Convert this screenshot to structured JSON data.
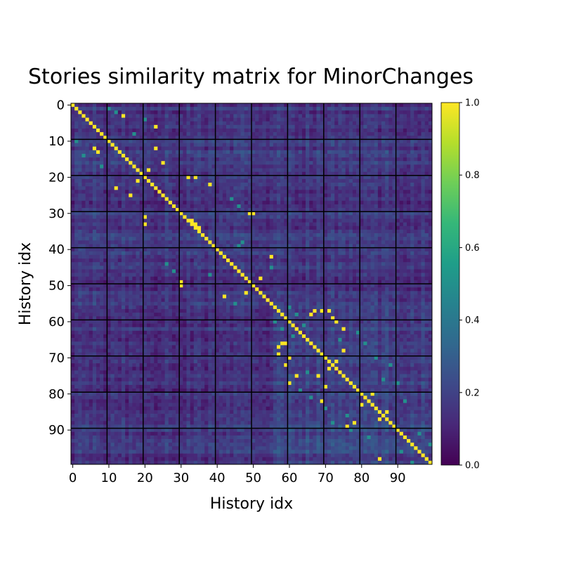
{
  "chart_data": {
    "type": "heatmap",
    "title": "Stories similarity matrix for MinorChanges",
    "xlabel": "History idx",
    "ylabel": "History idx",
    "size": 100,
    "x_ticks": [
      0,
      10,
      20,
      30,
      40,
      50,
      60,
      70,
      80,
      90
    ],
    "y_ticks": [
      0,
      10,
      20,
      30,
      40,
      50,
      60,
      70,
      80,
      90
    ],
    "gridlines_at": [
      9.5,
      19.5,
      29.5,
      39.5,
      49.5,
      59.5,
      69.5,
      79.5,
      89.5
    ],
    "value_range": [
      0.0,
      1.0
    ],
    "colormap": "viridis",
    "colormap_stops": [
      "#440154",
      "#482878",
      "#3e4989",
      "#31688e",
      "#26828e",
      "#1f9e89",
      "#35b779",
      "#6ece58",
      "#b5de2b",
      "#fde725"
    ],
    "colorbar_ticks": [
      "0.0",
      "0.2",
      "0.4",
      "0.6",
      "0.8",
      "1.0"
    ],
    "diagonal_value": 1.0,
    "high_similarity_pairs": [
      [
        3,
        14
      ],
      [
        6,
        23
      ],
      [
        12,
        6
      ],
      [
        12,
        23
      ],
      [
        13,
        7
      ],
      [
        16,
        25
      ],
      [
        18,
        21
      ],
      [
        21,
        18
      ],
      [
        23,
        12
      ],
      [
        25,
        16
      ],
      [
        20,
        32
      ],
      [
        20,
        34
      ],
      [
        22,
        38
      ],
      [
        30,
        49
      ],
      [
        30,
        50
      ],
      [
        31,
        20
      ],
      [
        33,
        20
      ],
      [
        32,
        33
      ],
      [
        33,
        34
      ],
      [
        34,
        35
      ],
      [
        42,
        55
      ],
      [
        48,
        52
      ],
      [
        49,
        30
      ],
      [
        50,
        30
      ],
      [
        52,
        48
      ],
      [
        53,
        42
      ],
      [
        57,
        67
      ],
      [
        57,
        69
      ],
      [
        57,
        71
      ],
      [
        58,
        66
      ],
      [
        59,
        72
      ],
      [
        60,
        73
      ],
      [
        62,
        75
      ],
      [
        66,
        58
      ],
      [
        66,
        59
      ],
      [
        67,
        57
      ],
      [
        68,
        75
      ],
      [
        69,
        57
      ],
      [
        70,
        60
      ],
      [
        71,
        73
      ],
      [
        72,
        59
      ],
      [
        73,
        71
      ],
      [
        75,
        62
      ],
      [
        75,
        68
      ],
      [
        77,
        60
      ],
      [
        78,
        70
      ],
      [
        80,
        83
      ],
      [
        82,
        69
      ],
      [
        83,
        80
      ],
      [
        85,
        87
      ],
      [
        87,
        85
      ],
      [
        88,
        78
      ],
      [
        89,
        76
      ],
      [
        98,
        85
      ]
    ],
    "medium_similarity_pairs": [
      [
        1,
        10
      ],
      [
        2,
        12
      ],
      [
        4,
        20
      ],
      [
        8,
        17
      ],
      [
        10,
        1
      ],
      [
        14,
        3
      ],
      [
        17,
        8
      ],
      [
        26,
        44
      ],
      [
        28,
        46
      ],
      [
        38,
        47
      ],
      [
        39,
        46
      ],
      [
        44,
        26
      ],
      [
        45,
        55
      ],
      [
        46,
        28
      ],
      [
        47,
        38
      ],
      [
        55,
        45
      ],
      [
        56,
        60
      ],
      [
        58,
        62
      ],
      [
        60,
        56
      ],
      [
        61,
        64
      ],
      [
        62,
        58
      ],
      [
        63,
        79
      ],
      [
        64,
        61
      ],
      [
        65,
        74
      ],
      [
        66,
        81
      ],
      [
        70,
        84
      ],
      [
        72,
        88
      ],
      [
        74,
        65
      ],
      [
        76,
        86
      ],
      [
        77,
        90
      ],
      [
        79,
        63
      ],
      [
        81,
        66
      ],
      [
        82,
        92
      ],
      [
        84,
        70
      ],
      [
        86,
        76
      ],
      [
        88,
        72
      ],
      [
        90,
        77
      ],
      [
        91,
        96
      ],
      [
        92,
        82
      ],
      [
        94,
        99
      ],
      [
        96,
        91
      ],
      [
        99,
        94
      ]
    ]
  }
}
